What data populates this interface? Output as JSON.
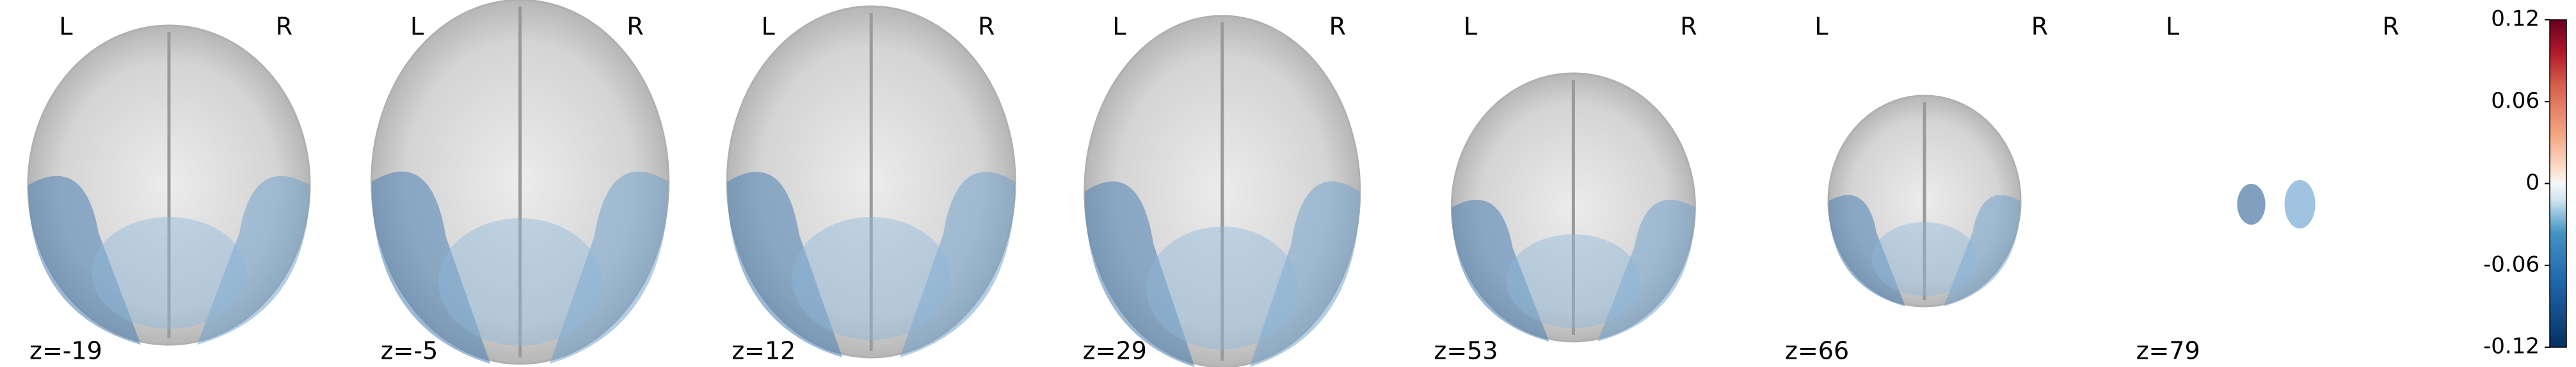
{
  "slices": [
    {
      "label": "z=-19",
      "left": "L",
      "right": "R"
    },
    {
      "label": "z=-5",
      "left": "L",
      "right": "R"
    },
    {
      "label": "z=12",
      "left": "L",
      "right": "R"
    },
    {
      "label": "z=29",
      "left": "L",
      "right": "R"
    },
    {
      "label": "z=53",
      "left": "L",
      "right": "R"
    },
    {
      "label": "z=66",
      "left": "L",
      "right": "R"
    },
    {
      "label": "z=79",
      "left": "L",
      "right": "R"
    }
  ],
  "colorbar": {
    "lim": [
      -0.12,
      0.12
    ],
    "ticks": [
      0.12,
      0.06,
      0,
      -0.06,
      -0.12
    ]
  }
}
